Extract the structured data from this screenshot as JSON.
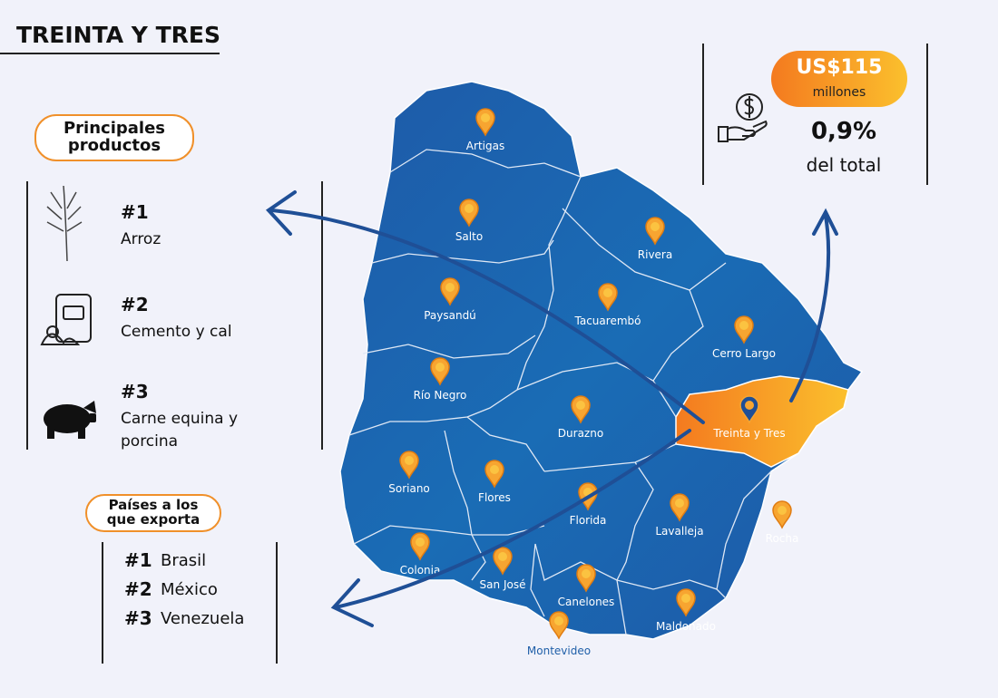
{
  "title": "TREINTA Y TRES",
  "products": {
    "heading": "Principales productos",
    "items": [
      {
        "rank": "#1",
        "name": "Arroz"
      },
      {
        "rank": "#2",
        "name": "Cemento y cal"
      },
      {
        "rank": "#3",
        "name": "Carne equina y porcina"
      }
    ]
  },
  "destinations": {
    "heading": "Países a los que exporta",
    "items": [
      {
        "rank": "#1",
        "name": "Brasil"
      },
      {
        "rank": "#2",
        "name": "México"
      },
      {
        "rank": "#3",
        "name": "Venezuela"
      }
    ]
  },
  "exports": {
    "amount": "US$115",
    "unit": "millones",
    "share": "0,9%",
    "share_label": "del total"
  },
  "map": {
    "departments": [
      "Artigas",
      "Salto",
      "Paysandú",
      "Tacuarembó",
      "Rivera",
      "Cerro Largo",
      "Río Negro",
      "Durazno",
      "Treinta y Tres",
      "Soriano",
      "Flores",
      "Florida",
      "Lavalleja",
      "Rocha",
      "Colonia",
      "San José",
      "Canelones",
      "Maldonado",
      "Montevideo"
    ]
  }
}
